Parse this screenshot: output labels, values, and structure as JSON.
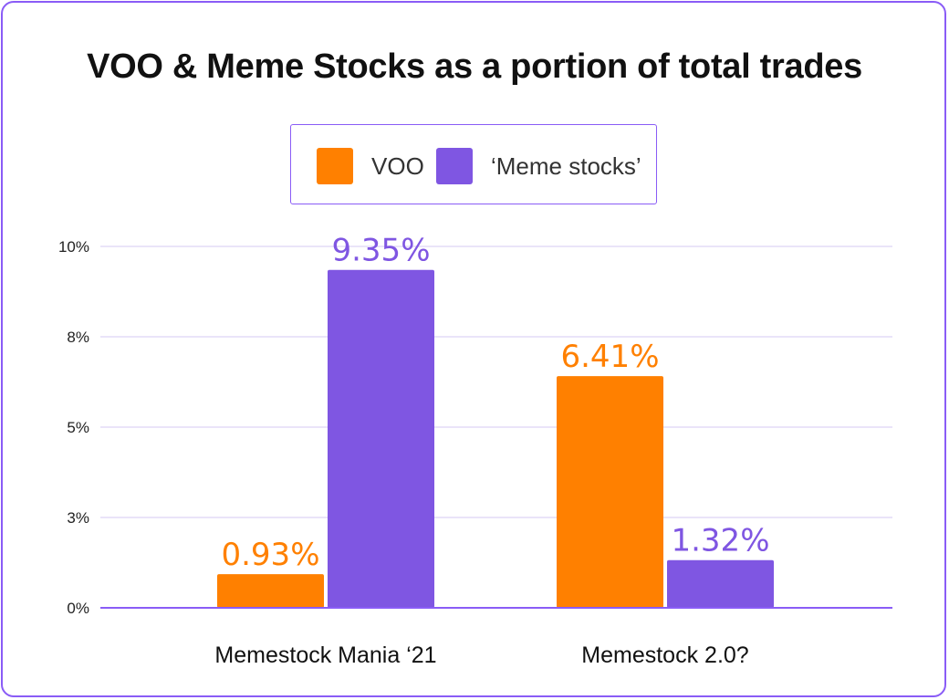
{
  "chart_data": {
    "type": "bar",
    "title": "VOO & Meme Stocks as a portion of total trades",
    "xlabel": "",
    "ylabel": "",
    "categories": [
      "Memestock Mania ‘21",
      "Memestock 2.0?"
    ],
    "series": [
      {
        "name": "VOO",
        "color": "#ff8000",
        "values": [
          0.93,
          6.41
        ],
        "labels": [
          "0.93%",
          "6.41%"
        ]
      },
      {
        "name": "‘Meme stocks’",
        "color": "#7f56e2",
        "values": [
          9.35,
          1.32
        ],
        "labels": [
          "9.35%",
          "1.32%"
        ]
      }
    ],
    "ylim": [
      0,
      10
    ],
    "yticks": [
      {
        "value": 0,
        "label": "0%"
      },
      {
        "value": 2.5,
        "label": "3%"
      },
      {
        "value": 5,
        "label": "5%"
      },
      {
        "value": 7.5,
        "label": "8%"
      },
      {
        "value": 10,
        "label": "10%"
      }
    ],
    "grid": true,
    "legend_position": "top-center",
    "axis_color": "#8a5cf6",
    "grid_color": "#e3dcf7"
  }
}
